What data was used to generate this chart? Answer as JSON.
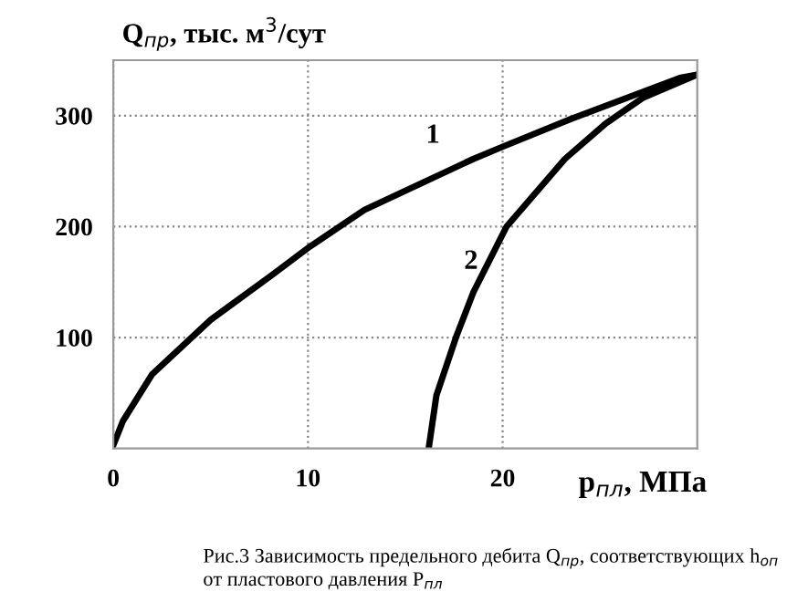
{
  "chart_data": {
    "type": "line",
    "ylabel": "Q$_{пр}$, тыс. м$^{3}$/сут",
    "xlabel": "p$_{пл}$, МПа",
    "series": [
      {
        "name": "1",
        "color": "#000000",
        "x": [
          0,
          0.5,
          2,
          5,
          8.2,
          10.1,
          12.9,
          18.5,
          20,
          23.5,
          29.1,
          30
        ],
        "values": [
          3,
          25,
          67,
          116,
          157,
          182,
          215,
          261,
          272,
          297,
          334,
          337
        ]
      },
      {
        "name": "2",
        "color": "#000000",
        "x": [
          16.2,
          16.6,
          17.6,
          18.5,
          20.2,
          23.2,
          25.3,
          27.2,
          30
        ],
        "values": [
          0,
          48,
          100,
          141,
          200,
          261,
          293,
          316,
          337
        ]
      }
    ],
    "annotations": [
      "Рис.3 Зависимость предельного дебита Q$_{пр}$, соответствующих h$_{оп}$ от пластового давления P$_{пл}$"
    ],
    "xlim": [
      0,
      30
    ],
    "ylim": [
      0,
      350
    ],
    "xticks": [
      0,
      10,
      20
    ],
    "yticks": [
      100,
      200,
      300
    ],
    "grid": true,
    "line_style": "solid",
    "marker": "none"
  }
}
